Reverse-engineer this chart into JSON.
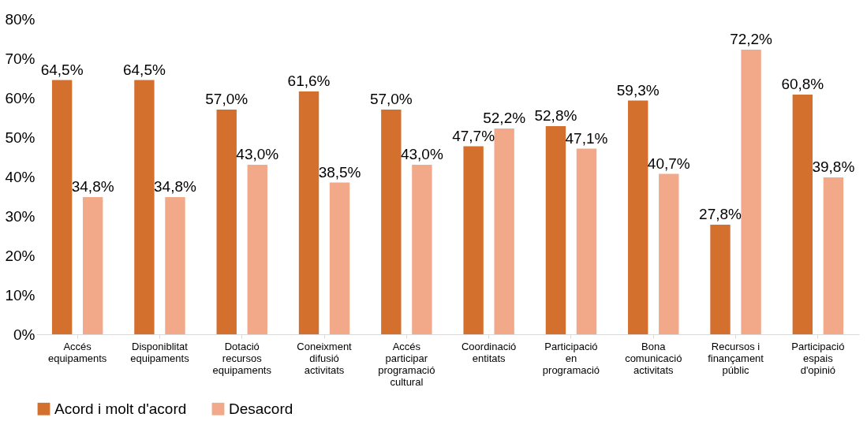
{
  "chart_data": {
    "type": "bar",
    "categories": [
      "Accés\nequipaments",
      "Disponiblitat\nequipaments",
      "Dotació\nrecursos\nequipaments",
      "Coneixment\ndifusió\nactivitats",
      "Accés\nparticipar\nprogramació\ncultural",
      "Coordinació\nentitats",
      "Participació\nen\nprogramació",
      "Bona\ncomunicació\nactivitats",
      "Recursos i\nfinançament\npúblic",
      "Participació\nespais\nd'opinió"
    ],
    "series": [
      {
        "name": "Acord i molt d'acord",
        "color": "#d4702e",
        "values": [
          64.5,
          64.5,
          57.0,
          61.6,
          57.0,
          47.7,
          52.8,
          59.3,
          27.8,
          60.8
        ],
        "value_labels": [
          "64,5%",
          "64,5%",
          "57,0%",
          "61,6%",
          "57,0%",
          "47,7%",
          "52,8%",
          "59,3%",
          "27,8%",
          "60,8%"
        ]
      },
      {
        "name": "Desacord",
        "color": "#f2a98a",
        "values": [
          34.8,
          34.8,
          43.0,
          38.5,
          43.0,
          52.2,
          47.1,
          40.7,
          72.2,
          39.8
        ],
        "value_labels": [
          "34,8%",
          "34,8%",
          "43,0%",
          "38,5%",
          "43,0%",
          "52,2%",
          "47,1%",
          "40,7%",
          "72,2%",
          "39,8%"
        ]
      }
    ],
    "ylim": [
      0,
      80
    ],
    "yticks": [
      {
        "value": 0,
        "label": "0%"
      },
      {
        "value": 10,
        "label": "10%"
      },
      {
        "value": 20,
        "label": "20%"
      },
      {
        "value": 30,
        "label": "30%"
      },
      {
        "value": 40,
        "label": "40%"
      },
      {
        "value": 50,
        "label": "50%"
      },
      {
        "value": 60,
        "label": "60%"
      },
      {
        "value": 70,
        "label": "70%"
      },
      {
        "value": 80,
        "label": "80%"
      }
    ],
    "grid": false,
    "legend": "bottom"
  }
}
